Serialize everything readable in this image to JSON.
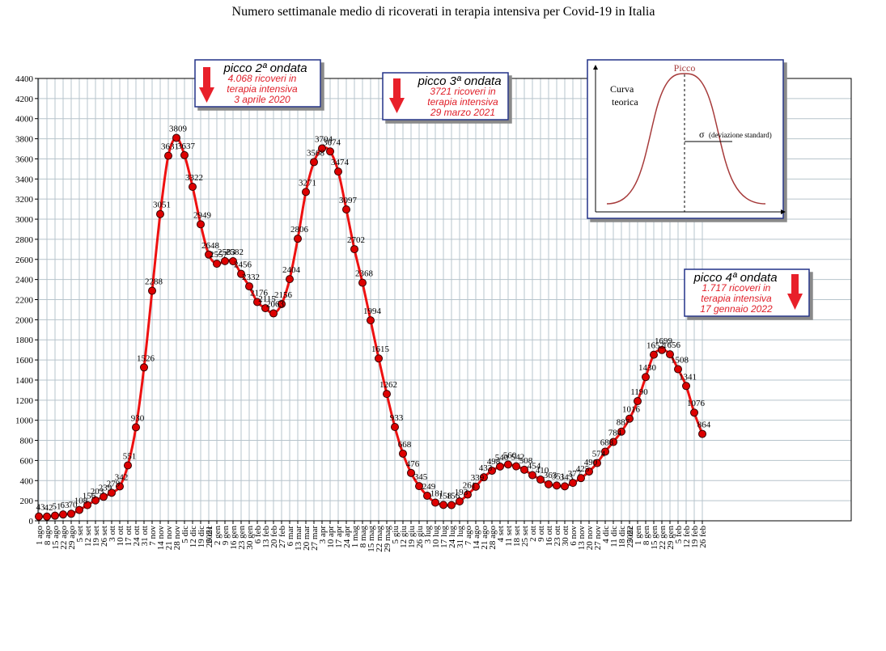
{
  "chart_data": {
    "type": "line",
    "title": "Numero settimanale medio di ricoverati in terapia intensiva per Covid-19 in Italia",
    "xlabel": "",
    "ylabel": "",
    "ylim": [
      0,
      4400
    ],
    "ytick_step": 200,
    "grid": true,
    "line_color": "#ee1111",
    "marker_color": "#dd0000",
    "year_labels": [
      {
        "label": "2021",
        "index": 22
      },
      {
        "label": "2022",
        "index": 74
      }
    ],
    "categories": [
      "1 ago",
      "8 ago",
      "15 ago",
      "22 ago",
      "29 ago",
      "5 set",
      "12 set",
      "19 set",
      "26 set",
      "3 ott",
      "10 ott",
      "17 ott",
      "24 ott",
      "31 ott",
      "7 nov",
      "14 nov",
      "21 nov",
      "28 nov",
      "5 dic",
      "12 dic",
      "19 dic",
      "26 dic",
      "2 gen",
      "9 gen",
      "16 gen",
      "23 gen",
      "30 gen",
      "6 feb",
      "13 feb",
      "20 feb",
      "27 feb",
      "6 mar",
      "13 mar",
      "20 mar",
      "27 mar",
      "3 apr",
      "10 apr",
      "17 apr",
      "24 apr",
      "1 mag",
      "8 mag",
      "15 mag",
      "22 mag",
      "29 mag",
      "5 giu",
      "12 giu",
      "19 giu",
      "26 giu",
      "3 lug",
      "10 lug",
      "17 lug",
      "24 lug",
      "31 lug",
      "7 ago",
      "14 ago",
      "21 ago",
      "28 ago",
      "4 set",
      "11 set",
      "18 set",
      "25 set",
      "2 ott",
      "9 ott",
      "16 ott",
      "23 ott",
      "30 ott",
      "6 nov",
      "13 nov",
      "20 nov",
      "27 nov",
      "4 dic",
      "11 dic",
      "18 dic",
      "25 dic",
      "1 gen",
      "8 gen",
      "15 gen",
      "22 gen",
      "29 gen",
      "5 feb",
      "12 feb",
      "19 feb",
      "26 feb"
    ],
    "series": [
      {
        "values": [
          43,
          42,
          51,
          63,
          70,
          108,
          156,
          203,
          239,
          279,
          342,
          551,
          930,
          1526,
          2288,
          3051,
          3631,
          3809,
          3637,
          3322,
          2949,
          2648,
          2557,
          2583,
          2582,
          2456,
          2332,
          2176,
          2115,
          2063,
          2156,
          2404,
          2806,
          3271,
          3568,
          3704,
          3674,
          3474,
          3097,
          2702,
          2368,
          1994,
          1615,
          1262,
          933,
          668,
          476,
          345,
          249,
          181,
          158,
          156,
          193,
          261,
          339,
          433,
          498,
          540,
          560,
          542,
          508,
          454,
          410,
          363,
          351,
          343,
          377,
          425,
          490,
          574,
          688,
          784,
          887,
          1016,
          1190,
          1430,
          1652,
          1699,
          1656,
          1508,
          1341,
          1076,
          864
        ]
      }
    ],
    "annotations": [
      {
        "title": "picco 2ª ondata",
        "lines": [
          "4.068 ricoveri in",
          "terapia intensiva",
          "3 aprile 2020"
        ]
      },
      {
        "title": "picco 3ª ondata",
        "lines": [
          "3721 ricoveri in",
          "terapia intensiva",
          "29 marzo 2021"
        ]
      },
      {
        "title": "picco 4ª ondata",
        "lines": [
          "1.717 ricoveri in",
          "terapia intensiva",
          "17 gennaio 2022"
        ]
      }
    ],
    "inset": {
      "peak_label": "Picco",
      "curve_label_1": "Curva",
      "curve_label_2": "teorica",
      "sigma_label": "σ",
      "sigma_text": "(deviazione standard)"
    }
  }
}
